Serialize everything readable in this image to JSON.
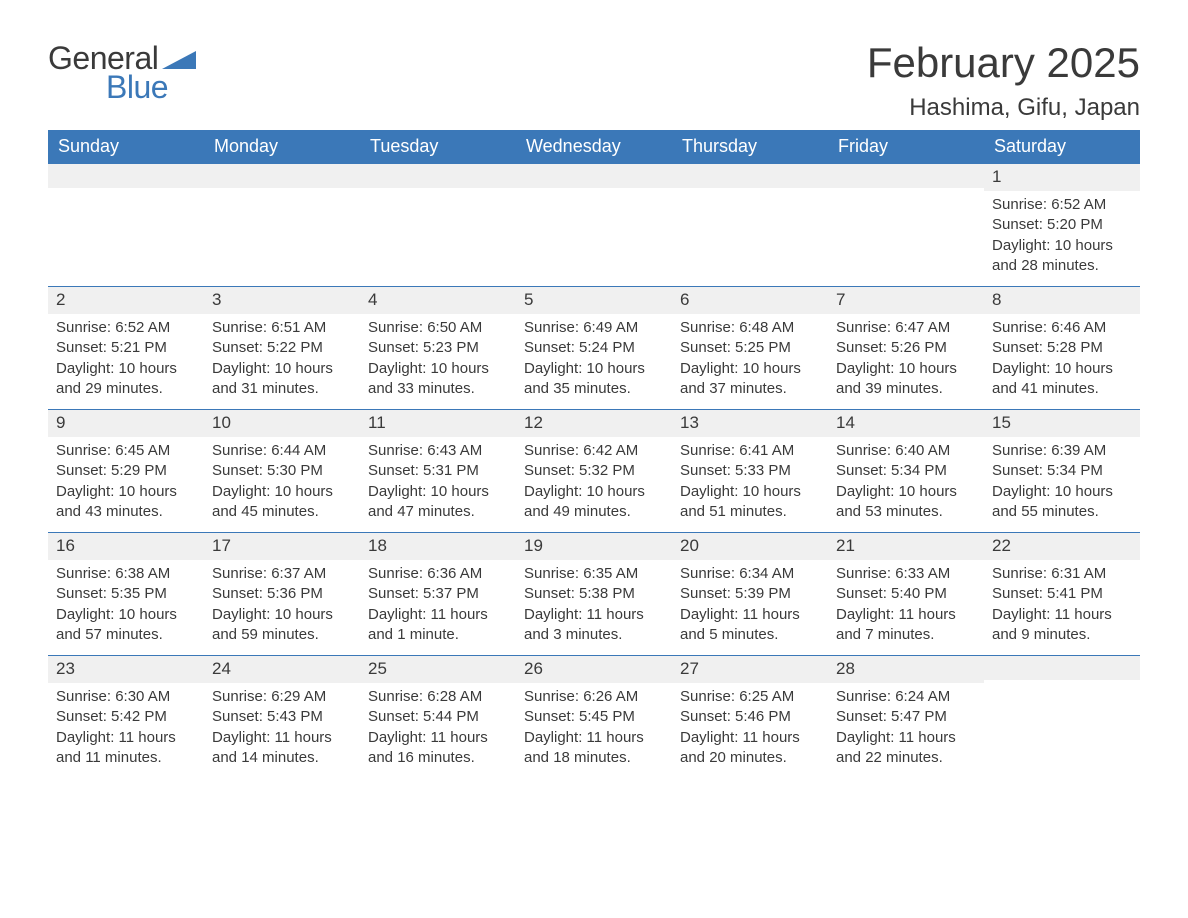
{
  "logo": {
    "text1": "General",
    "text2": "Blue",
    "shape_color": "#3b78b8"
  },
  "title": "February 2025",
  "location": "Hashima, Gifu, Japan",
  "header_bg": "#3b78b8",
  "header_text_color": "#ffffff",
  "daynum_bg": "#f0f0f0",
  "row_border_color": "#3b78b8",
  "text_color": "#3a3a3a",
  "day_headers": [
    "Sunday",
    "Monday",
    "Tuesday",
    "Wednesday",
    "Thursday",
    "Friday",
    "Saturday"
  ],
  "weeks": [
    [
      {
        "blank": true
      },
      {
        "blank": true
      },
      {
        "blank": true
      },
      {
        "blank": true
      },
      {
        "blank": true
      },
      {
        "blank": true
      },
      {
        "day": "1",
        "sunrise": "Sunrise: 6:52 AM",
        "sunset": "Sunset: 5:20 PM",
        "daylight": "Daylight: 10 hours and 28 minutes."
      }
    ],
    [
      {
        "day": "2",
        "sunrise": "Sunrise: 6:52 AM",
        "sunset": "Sunset: 5:21 PM",
        "daylight": "Daylight: 10 hours and 29 minutes."
      },
      {
        "day": "3",
        "sunrise": "Sunrise: 6:51 AM",
        "sunset": "Sunset: 5:22 PM",
        "daylight": "Daylight: 10 hours and 31 minutes."
      },
      {
        "day": "4",
        "sunrise": "Sunrise: 6:50 AM",
        "sunset": "Sunset: 5:23 PM",
        "daylight": "Daylight: 10 hours and 33 minutes."
      },
      {
        "day": "5",
        "sunrise": "Sunrise: 6:49 AM",
        "sunset": "Sunset: 5:24 PM",
        "daylight": "Daylight: 10 hours and 35 minutes."
      },
      {
        "day": "6",
        "sunrise": "Sunrise: 6:48 AM",
        "sunset": "Sunset: 5:25 PM",
        "daylight": "Daylight: 10 hours and 37 minutes."
      },
      {
        "day": "7",
        "sunrise": "Sunrise: 6:47 AM",
        "sunset": "Sunset: 5:26 PM",
        "daylight": "Daylight: 10 hours and 39 minutes."
      },
      {
        "day": "8",
        "sunrise": "Sunrise: 6:46 AM",
        "sunset": "Sunset: 5:28 PM",
        "daylight": "Daylight: 10 hours and 41 minutes."
      }
    ],
    [
      {
        "day": "9",
        "sunrise": "Sunrise: 6:45 AM",
        "sunset": "Sunset: 5:29 PM",
        "daylight": "Daylight: 10 hours and 43 minutes."
      },
      {
        "day": "10",
        "sunrise": "Sunrise: 6:44 AM",
        "sunset": "Sunset: 5:30 PM",
        "daylight": "Daylight: 10 hours and 45 minutes."
      },
      {
        "day": "11",
        "sunrise": "Sunrise: 6:43 AM",
        "sunset": "Sunset: 5:31 PM",
        "daylight": "Daylight: 10 hours and 47 minutes."
      },
      {
        "day": "12",
        "sunrise": "Sunrise: 6:42 AM",
        "sunset": "Sunset: 5:32 PM",
        "daylight": "Daylight: 10 hours and 49 minutes."
      },
      {
        "day": "13",
        "sunrise": "Sunrise: 6:41 AM",
        "sunset": "Sunset: 5:33 PM",
        "daylight": "Daylight: 10 hours and 51 minutes."
      },
      {
        "day": "14",
        "sunrise": "Sunrise: 6:40 AM",
        "sunset": "Sunset: 5:34 PM",
        "daylight": "Daylight: 10 hours and 53 minutes."
      },
      {
        "day": "15",
        "sunrise": "Sunrise: 6:39 AM",
        "sunset": "Sunset: 5:34 PM",
        "daylight": "Daylight: 10 hours and 55 minutes."
      }
    ],
    [
      {
        "day": "16",
        "sunrise": "Sunrise: 6:38 AM",
        "sunset": "Sunset: 5:35 PM",
        "daylight": "Daylight: 10 hours and 57 minutes."
      },
      {
        "day": "17",
        "sunrise": "Sunrise: 6:37 AM",
        "sunset": "Sunset: 5:36 PM",
        "daylight": "Daylight: 10 hours and 59 minutes."
      },
      {
        "day": "18",
        "sunrise": "Sunrise: 6:36 AM",
        "sunset": "Sunset: 5:37 PM",
        "daylight": "Daylight: 11 hours and 1 minute."
      },
      {
        "day": "19",
        "sunrise": "Sunrise: 6:35 AM",
        "sunset": "Sunset: 5:38 PM",
        "daylight": "Daylight: 11 hours and 3 minutes."
      },
      {
        "day": "20",
        "sunrise": "Sunrise: 6:34 AM",
        "sunset": "Sunset: 5:39 PM",
        "daylight": "Daylight: 11 hours and 5 minutes."
      },
      {
        "day": "21",
        "sunrise": "Sunrise: 6:33 AM",
        "sunset": "Sunset: 5:40 PM",
        "daylight": "Daylight: 11 hours and 7 minutes."
      },
      {
        "day": "22",
        "sunrise": "Sunrise: 6:31 AM",
        "sunset": "Sunset: 5:41 PM",
        "daylight": "Daylight: 11 hours and 9 minutes."
      }
    ],
    [
      {
        "day": "23",
        "sunrise": "Sunrise: 6:30 AM",
        "sunset": "Sunset: 5:42 PM",
        "daylight": "Daylight: 11 hours and 11 minutes."
      },
      {
        "day": "24",
        "sunrise": "Sunrise: 6:29 AM",
        "sunset": "Sunset: 5:43 PM",
        "daylight": "Daylight: 11 hours and 14 minutes."
      },
      {
        "day": "25",
        "sunrise": "Sunrise: 6:28 AM",
        "sunset": "Sunset: 5:44 PM",
        "daylight": "Daylight: 11 hours and 16 minutes."
      },
      {
        "day": "26",
        "sunrise": "Sunrise: 6:26 AM",
        "sunset": "Sunset: 5:45 PM",
        "daylight": "Daylight: 11 hours and 18 minutes."
      },
      {
        "day": "27",
        "sunrise": "Sunrise: 6:25 AM",
        "sunset": "Sunset: 5:46 PM",
        "daylight": "Daylight: 11 hours and 20 minutes."
      },
      {
        "day": "28",
        "sunrise": "Sunrise: 6:24 AM",
        "sunset": "Sunset: 5:47 PM",
        "daylight": "Daylight: 11 hours and 22 minutes."
      },
      {
        "blank": true
      }
    ]
  ]
}
